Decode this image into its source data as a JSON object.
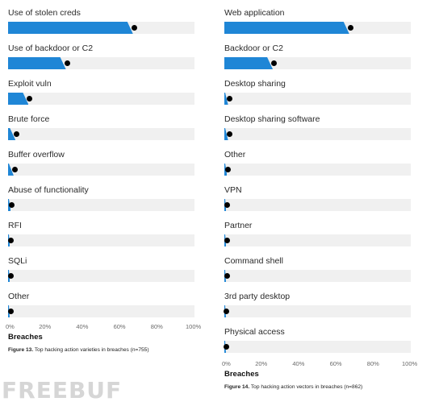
{
  "chart_data": [
    {
      "type": "bar",
      "orientation": "horizontal",
      "categories": [
        "Use of stolen creds",
        "Use of backdoor or C2",
        "Exploit vuln",
        "Brute force",
        "Buffer overflow",
        "Abuse of functionality",
        "RFI",
        "SQLi",
        "Other"
      ],
      "values": [
        67,
        31,
        11,
        4,
        3,
        1.5,
        1,
        1,
        0.8
      ],
      "xlabel": "Breaches",
      "xlim": [
        0,
        100
      ],
      "xticks": [
        "0%",
        "20%",
        "40%",
        "60%",
        "80%",
        "100%"
      ],
      "caption_label": "Figure 13.",
      "caption_text": " Top hacking action varieties in breaches (n=755)",
      "colors": {
        "bar": "#1f86d6",
        "track": "#f0f0f0",
        "point": "#000000"
      }
    },
    {
      "type": "bar",
      "orientation": "horizontal",
      "categories": [
        "Web application",
        "Backdoor or C2",
        "Desktop sharing",
        "Desktop sharing software",
        "Other",
        "VPN",
        "Partner",
        "Command shell",
        "3rd party desktop",
        "Physical access"
      ],
      "values": [
        67,
        26,
        2,
        2,
        1.5,
        1,
        1,
        0.8,
        0.6,
        0.4
      ],
      "xlabel": "Breaches",
      "xlim": [
        0,
        100
      ],
      "xticks": [
        "0%",
        "20%",
        "40%",
        "60%",
        "80%",
        "100%"
      ],
      "caption_label": "Figure 14.",
      "caption_text": " Top hacking action vectors in breaches (n=862)",
      "colors": {
        "bar": "#1f86d6",
        "track": "#f0f0f0",
        "point": "#000000"
      }
    }
  ],
  "watermark": "FREEBUF"
}
